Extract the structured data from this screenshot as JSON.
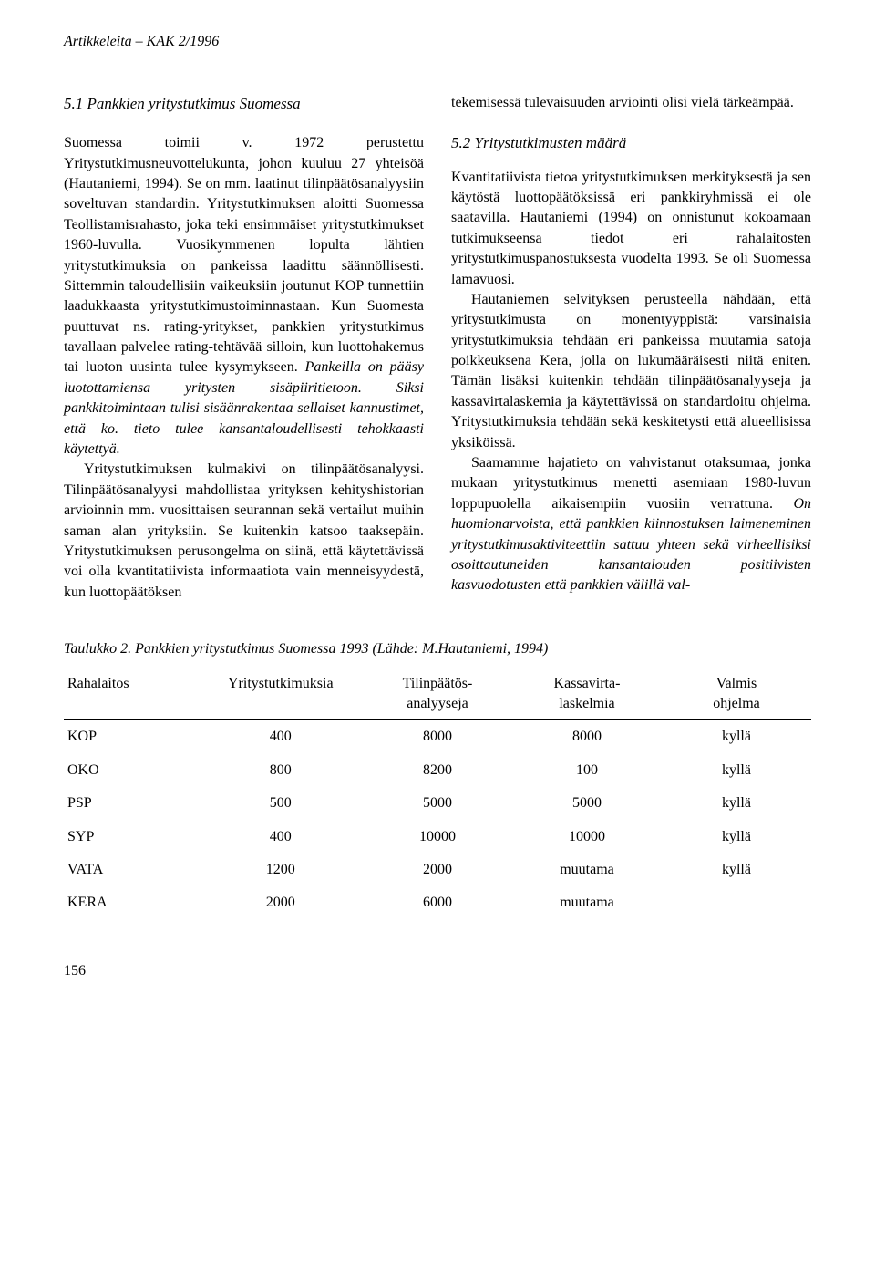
{
  "header": "Artikkeleita – KAK 2/1996",
  "left_col": {
    "heading": "5.1 Pankkien yritystutkimus Suomessa",
    "p1": "Suomessa toimii v. 1972 perustettu Yritystutkimusneuvottelukunta, johon kuuluu 27 yhteisöä (Hautaniemi, 1994). Se on mm. laatinut tilinpäätösanalyysiin soveltuvan standardin. Yritystutkimuksen aloitti Suomessa Teollistamisrahasto, joka teki ensimmäiset yritystutkimukset 1960-luvulla. Vuosikymmenen lopulta lähtien yritystutkimuksia on pankeissa laadittu säännöllisesti. Sittemmin taloudellisiin vaikeuksiin joutunut KOP tunnettiin laadukkaasta yritystutkimustoiminnastaan. Kun Suomesta puuttuvat ns. rating-yritykset, pankkien yritystutkimus tavallaan palvelee rating-tehtävää silloin, kun luottohakemus tai luoton uusinta tulee kysymykseen. ",
    "p1_italic": "Pankeilla on pääsy luotottamiensa yritysten sisäpiiritietoon. Siksi pankkitoimintaan tulisi sisäänrakentaa sellaiset kannustimet, että ko. tieto tulee kansantaloudellisesti tehokkaasti käytettyä.",
    "p2": "Yritystutkimuksen kulmakivi on tilinpäätösanalyysi. Tilinpäätösanalyysi mahdollistaa yrityksen kehityshistorian arvioinnin mm. vuosittaisen seurannan sekä vertailut muihin saman alan yrityksiin. Se kuitenkin katsoo taaksepäin. Yritystutkimuksen perusongelma on siinä, että käytettävissä voi olla kvantitatiivista informaatiota vain menneisyydestä, kun luottopäätöksen"
  },
  "right_col": {
    "p0": "tekemisessä tulevaisuuden arviointi olisi vielä tärkeämpää.",
    "heading": "5.2 Yritystutkimusten määrä",
    "p1": "Kvantitatiivista tietoa yritystutkimuksen merkityksestä ja sen käytöstä luottopäätöksissä eri pankkiryhmissä ei ole saatavilla. Hautaniemi (1994) on onnistunut kokoamaan tutkimukseensa tiedot eri rahalaitosten yritystutkimuspanostuksesta vuodelta 1993. Se oli Suomessa lamavuosi.",
    "p2": "Hautaniemen selvityksen perusteella nähdään, että yritystutkimusta on monentyyppistä: varsinaisia yritystutkimuksia tehdään eri pankeissa muutamia satoja poikkeuksena Kera, jolla on lukumääräisesti niitä eniten. Tämän lisäksi kuitenkin tehdään tilinpäätösanalyyseja ja kassavirtalaskemia ja käytettävissä on standardoitu ohjelma. Yritystutkimuksia tehdään sekä keskitetysti että alueellisissa yksiköissä.",
    "p3a": "Saamamme hajatieto on vahvistanut otaksumaa, jonka mukaan yritystutkimus menetti asemiaan 1980-luvun loppupuolella aikaisempiin vuosiin verrattuna. ",
    "p3_italic": "On huomionarvoista, että pankkien kiinnostuksen laimeneminen yritystutkimusaktiviteettiin sattuu yhteen sekä virheellisiksi osoittautuneiden kansantalouden positiivisten kasvuodotusten että pankkien välillä val-"
  },
  "table": {
    "caption": "Taulukko 2. Pankkien yritystutkimus Suomessa 1993 (Lähde: M.Hautaniemi, 1994)",
    "columns": [
      "Rahalaitos",
      "Yritystutkimuksia",
      "Tilinpäätös-\nanalyyseja",
      "Kassavirta-\nlaskelmia",
      "Valmis\nohjelma"
    ],
    "rows": [
      [
        "KOP",
        "400",
        "8000",
        "8000",
        "kyllä"
      ],
      [
        "OKO",
        "800",
        "8200",
        "100",
        "kyllä"
      ],
      [
        "PSP",
        "500",
        "5000",
        "5000",
        "kyllä"
      ],
      [
        "SYP",
        "400",
        "10000",
        "10000",
        "kyllä"
      ],
      [
        "VATA",
        "1200",
        "2000",
        "muutama",
        "kyllä"
      ],
      [
        "KERA",
        "2000",
        "6000",
        "muutama",
        ""
      ]
    ]
  },
  "page_number": "156"
}
